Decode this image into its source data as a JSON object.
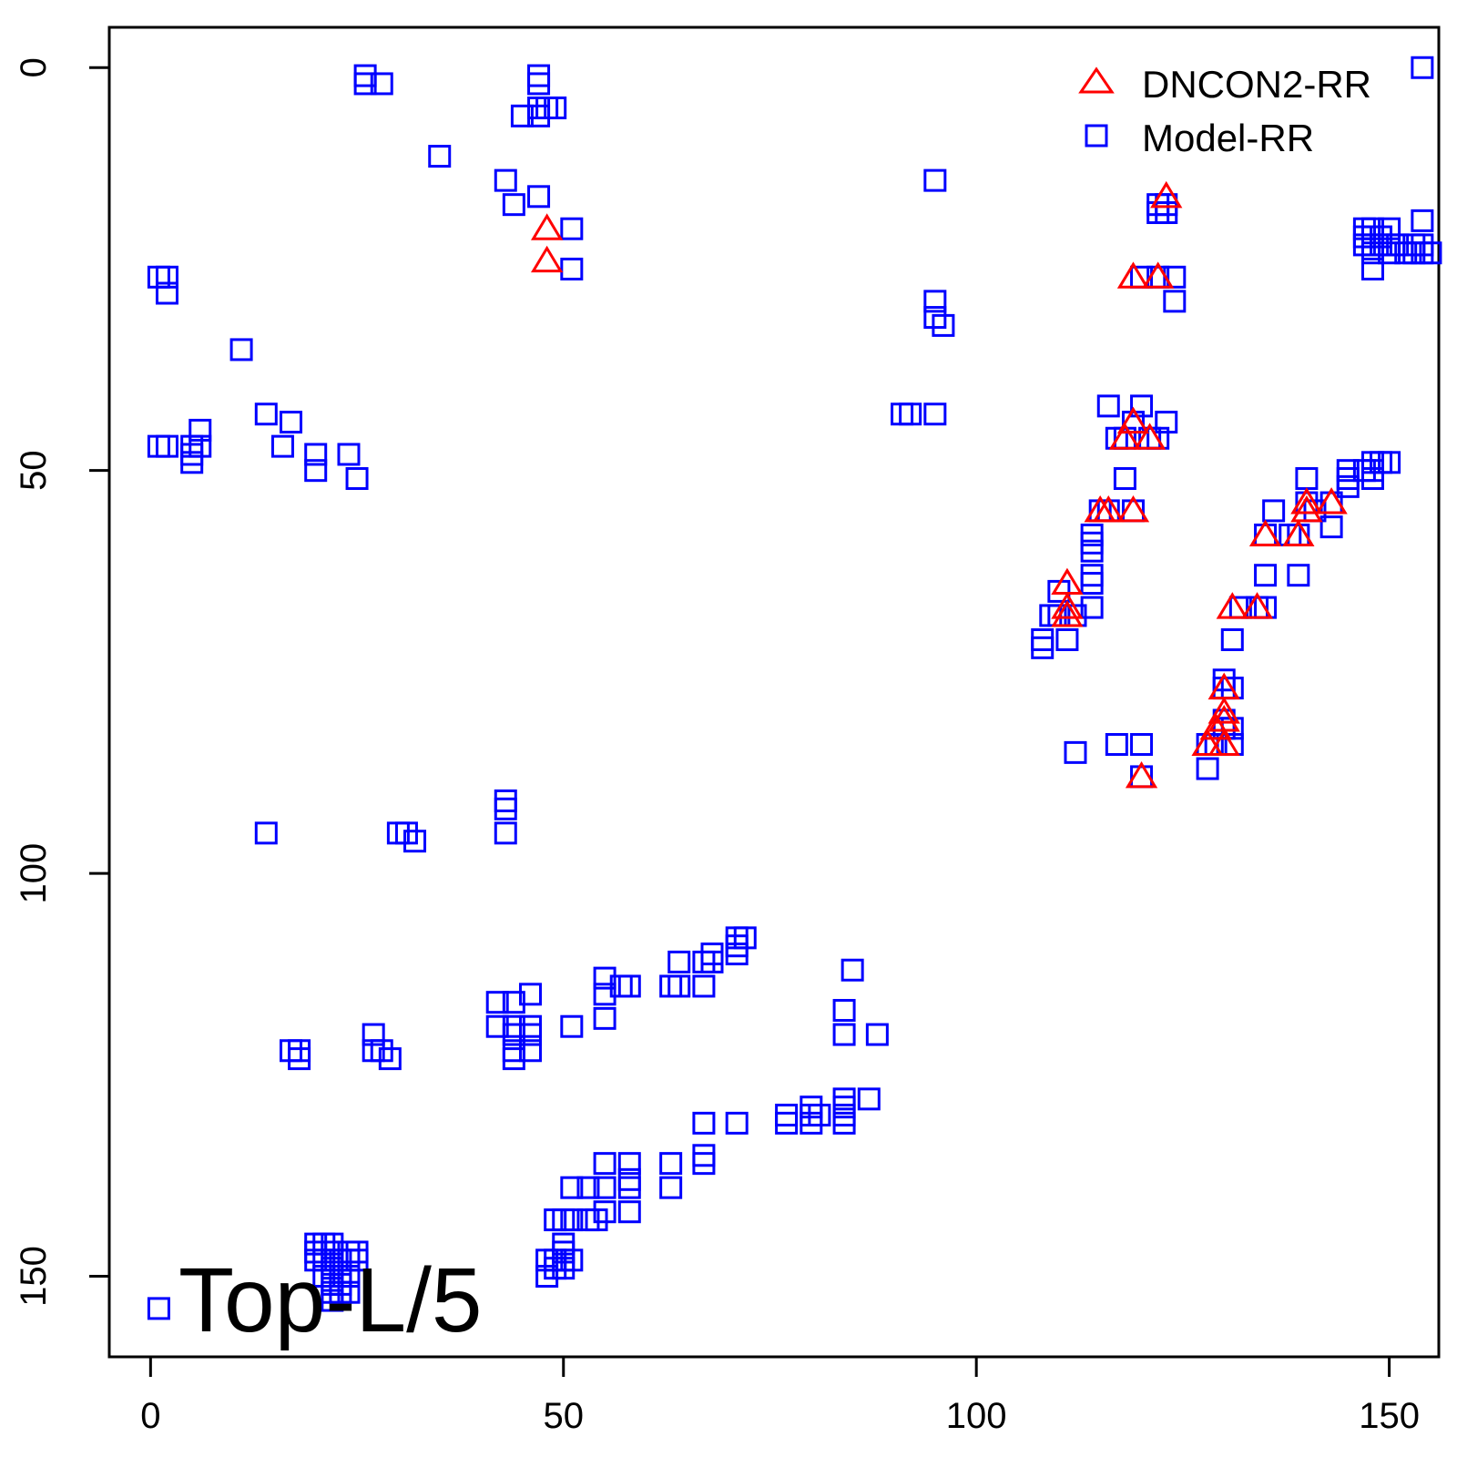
{
  "chart_data": {
    "type": "scatter",
    "xlim": [
      -5,
      156
    ],
    "ylim": [
      160,
      -5
    ],
    "y_axis": "reversed",
    "grid": false,
    "x_ticks": [
      0,
      50,
      100,
      150
    ],
    "y_ticks": [
      0,
      50,
      100,
      150
    ],
    "legend_position": "top-right",
    "annotation": "Top-L/5",
    "series": [
      {
        "name": "DNCON2-RR",
        "marker": "triangle",
        "color": "#ff0000",
        "points": [
          [
            48,
            20
          ],
          [
            48,
            24
          ],
          [
            119,
            26
          ],
          [
            122,
            26
          ],
          [
            123,
            16
          ],
          [
            119,
            44
          ],
          [
            118,
            46
          ],
          [
            121,
            46
          ],
          [
            115,
            55
          ],
          [
            116,
            55
          ],
          [
            119,
            55
          ],
          [
            111,
            64
          ],
          [
            111,
            67
          ],
          [
            111,
            68
          ],
          [
            131,
            67
          ],
          [
            134,
            67
          ],
          [
            135,
            58
          ],
          [
            139,
            58
          ],
          [
            140,
            54
          ],
          [
            140,
            55
          ],
          [
            143,
            54
          ],
          [
            130,
            77
          ],
          [
            130,
            80
          ],
          [
            130,
            81
          ],
          [
            129,
            82
          ],
          [
            128,
            84
          ],
          [
            130,
            84
          ],
          [
            120,
            88
          ]
        ]
      },
      {
        "name": "Model-RR",
        "marker": "square",
        "color": "#0000ff",
        "points": [
          [
            26,
            1
          ],
          [
            26,
            2
          ],
          [
            28,
            2
          ],
          [
            47,
            1
          ],
          [
            47,
            2
          ],
          [
            47,
            5
          ],
          [
            48,
            5
          ],
          [
            49,
            5
          ],
          [
            45,
            6
          ],
          [
            47,
            6
          ],
          [
            35,
            11
          ],
          [
            43,
            14
          ],
          [
            44,
            17
          ],
          [
            47,
            16
          ],
          [
            51,
            20
          ],
          [
            51,
            25
          ],
          [
            95,
            14
          ],
          [
            1,
            26
          ],
          [
            2,
            26
          ],
          [
            2,
            28
          ],
          [
            95,
            29
          ],
          [
            95,
            31
          ],
          [
            96,
            32
          ],
          [
            11,
            35
          ],
          [
            14,
            43
          ],
          [
            17,
            44
          ],
          [
            6,
            45
          ],
          [
            6,
            47
          ],
          [
            5,
            47
          ],
          [
            5,
            48
          ],
          [
            5,
            49
          ],
          [
            1,
            47
          ],
          [
            2,
            47
          ],
          [
            16,
            47
          ],
          [
            20,
            48
          ],
          [
            20,
            50
          ],
          [
            24,
            48
          ],
          [
            25,
            51
          ],
          [
            91,
            43
          ],
          [
            92,
            43
          ],
          [
            95,
            43
          ],
          [
            123,
            17
          ],
          [
            122,
            17
          ],
          [
            122,
            18
          ],
          [
            123,
            18
          ],
          [
            120,
            26
          ],
          [
            122,
            26
          ],
          [
            124,
            26
          ],
          [
            124,
            29
          ],
          [
            116,
            42
          ],
          [
            120,
            42
          ],
          [
            119,
            44
          ],
          [
            123,
            44
          ],
          [
            117,
            46
          ],
          [
            118,
            46
          ],
          [
            121,
            46
          ],
          [
            122,
            46
          ],
          [
            118,
            51
          ],
          [
            115,
            55
          ],
          [
            116,
            55
          ],
          [
            119,
            55
          ],
          [
            114,
            58
          ],
          [
            114,
            59
          ],
          [
            114,
            60
          ],
          [
            114,
            63
          ],
          [
            114,
            64
          ],
          [
            114,
            67
          ],
          [
            109,
            68
          ],
          [
            110,
            68
          ],
          [
            112,
            68
          ],
          [
            108,
            71
          ],
          [
            108,
            72
          ],
          [
            111,
            71
          ],
          [
            112,
            85
          ],
          [
            117,
            84
          ],
          [
            120,
            84
          ],
          [
            120,
            88
          ],
          [
            110,
            65
          ],
          [
            136,
            55
          ],
          [
            135,
            58
          ],
          [
            138,
            58
          ],
          [
            139,
            58
          ],
          [
            135,
            63
          ],
          [
            139,
            63
          ],
          [
            140,
            51
          ],
          [
            140,
            54
          ],
          [
            141,
            55
          ],
          [
            143,
            54
          ],
          [
            143,
            57
          ],
          [
            145,
            50
          ],
          [
            145,
            51
          ],
          [
            145,
            52
          ],
          [
            147,
            50
          ],
          [
            148,
            50
          ],
          [
            148,
            49
          ],
          [
            148,
            51
          ],
          [
            149,
            49
          ],
          [
            150,
            49
          ],
          [
            132,
            67
          ],
          [
            134,
            67
          ],
          [
            135,
            67
          ],
          [
            131,
            71
          ],
          [
            130,
            76
          ],
          [
            130,
            77
          ],
          [
            131,
            77
          ],
          [
            130,
            81
          ],
          [
            130,
            82
          ],
          [
            131,
            82
          ],
          [
            128,
            84
          ],
          [
            129,
            84
          ],
          [
            131,
            84
          ],
          [
            128,
            87
          ],
          [
            147,
            20
          ],
          [
            147,
            21
          ],
          [
            147,
            22
          ],
          [
            148,
            20
          ],
          [
            148,
            21
          ],
          [
            148,
            22
          ],
          [
            148,
            23
          ],
          [
            148,
            25
          ],
          [
            149,
            21
          ],
          [
            149,
            22
          ],
          [
            150,
            20
          ],
          [
            150,
            22
          ],
          [
            150,
            23
          ],
          [
            151,
            22
          ],
          [
            152,
            23
          ],
          [
            153,
            22
          ],
          [
            153,
            23
          ],
          [
            154,
            19
          ],
          [
            154,
            22
          ],
          [
            154,
            23
          ],
          [
            155,
            23
          ],
          [
            154,
            0
          ],
          [
            1,
            154
          ],
          [
            20,
            146
          ],
          [
            20,
            147
          ],
          [
            20,
            148
          ],
          [
            21,
            146
          ],
          [
            21,
            148
          ],
          [
            21,
            150
          ],
          [
            22,
            146
          ],
          [
            22,
            147
          ],
          [
            22,
            148
          ],
          [
            22,
            149
          ],
          [
            22,
            150
          ],
          [
            22,
            151
          ],
          [
            22,
            152
          ],
          [
            22,
            153
          ],
          [
            23,
            148
          ],
          [
            23,
            150
          ],
          [
            23,
            151
          ],
          [
            23,
            152
          ],
          [
            24,
            147
          ],
          [
            24,
            148
          ],
          [
            24,
            150
          ],
          [
            24,
            152
          ],
          [
            25,
            147
          ],
          [
            25,
            148
          ],
          [
            17,
            122
          ],
          [
            18,
            122
          ],
          [
            18,
            123
          ],
          [
            27,
            122
          ],
          [
            27,
            120
          ],
          [
            28,
            122
          ],
          [
            29,
            123
          ],
          [
            30,
            95
          ],
          [
            31,
            95
          ],
          [
            32,
            96
          ],
          [
            14,
            95
          ],
          [
            43,
            91
          ],
          [
            43,
            92
          ],
          [
            43,
            95
          ],
          [
            42,
            116
          ],
          [
            42,
            119
          ],
          [
            44,
            116
          ],
          [
            44,
            119
          ],
          [
            44,
            120
          ],
          [
            44,
            122
          ],
          [
            44,
            123
          ],
          [
            46,
            115
          ],
          [
            46,
            119
          ],
          [
            46,
            120
          ],
          [
            46,
            122
          ],
          [
            51,
            119
          ],
          [
            55,
            113
          ],
          [
            55,
            115
          ],
          [
            55,
            118
          ],
          [
            57,
            114
          ],
          [
            58,
            114
          ],
          [
            63,
            114
          ],
          [
            64,
            114
          ],
          [
            64,
            111
          ],
          [
            67,
            111
          ],
          [
            67,
            114
          ],
          [
            68,
            110
          ],
          [
            68,
            111
          ],
          [
            71,
            108
          ],
          [
            71,
            109
          ],
          [
            71,
            110
          ],
          [
            72,
            108
          ],
          [
            85,
            112
          ],
          [
            84,
            117
          ],
          [
            84,
            120
          ],
          [
            88,
            120
          ],
          [
            77,
            130
          ],
          [
            77,
            131
          ],
          [
            80,
            129
          ],
          [
            80,
            130
          ],
          [
            80,
            131
          ],
          [
            81,
            130
          ],
          [
            84,
            129
          ],
          [
            84,
            130
          ],
          [
            84,
            131
          ],
          [
            84,
            128
          ],
          [
            87,
            128
          ],
          [
            67,
            131
          ],
          [
            71,
            131
          ],
          [
            67,
            135
          ],
          [
            67,
            136
          ],
          [
            63,
            136
          ],
          [
            63,
            139
          ],
          [
            58,
            136
          ],
          [
            58,
            138
          ],
          [
            58,
            139
          ],
          [
            58,
            142
          ],
          [
            55,
            136
          ],
          [
            55,
            139
          ],
          [
            55,
            142
          ],
          [
            54,
            143
          ],
          [
            53,
            139
          ],
          [
            53,
            143
          ],
          [
            51,
            139
          ],
          [
            51,
            143
          ],
          [
            50,
            143
          ],
          [
            50,
            146
          ],
          [
            50,
            147
          ],
          [
            50,
            148
          ],
          [
            50,
            149
          ],
          [
            49,
            143
          ],
          [
            49,
            148
          ],
          [
            49,
            149
          ],
          [
            48,
            148
          ],
          [
            48,
            150
          ],
          [
            51,
            148
          ]
        ]
      }
    ]
  }
}
